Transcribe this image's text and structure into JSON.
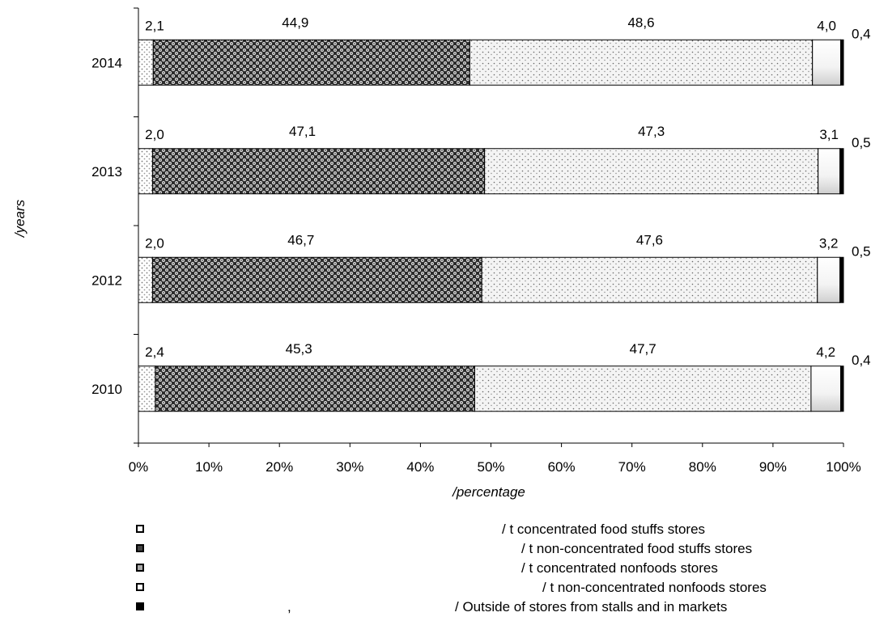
{
  "chart_data": {
    "type": "bar",
    "orientation": "horizontal",
    "stacked": "percent",
    "categories": [
      "2014",
      "2013",
      "2012",
      "2010"
    ],
    "series": [
      {
        "name": "/ t concentrated food stuffs stores",
        "values": [
          2.1,
          2.0,
          2.0,
          2.4
        ],
        "labels": [
          "2,1",
          "2,0",
          "2,0",
          "2,4"
        ],
        "pattern": "small-dots-light"
      },
      {
        "name": "/ t non-concentrated food stuffs stores",
        "values": [
          44.9,
          47.1,
          46.7,
          45.3
        ],
        "labels": [
          "44,9",
          "47,1",
          "46,7",
          "45,3"
        ],
        "pattern": "dark-checker"
      },
      {
        "name": "/ t concentrated nonfoods stores",
        "values": [
          48.6,
          47.3,
          47.6,
          47.7
        ],
        "labels": [
          "48,6",
          "47,3",
          "47,6",
          "47,7"
        ],
        "pattern": "fine-dots"
      },
      {
        "name": "/ t non-concentrated nonfoods stores",
        "values": [
          4.0,
          3.1,
          3.2,
          4.2
        ],
        "labels": [
          "4,0",
          "3,1",
          "3,2",
          "4,2"
        ],
        "pattern": "white-gradient"
      },
      {
        "name": "/ Outside of stores from stalls and in markets",
        "values": [
          0.4,
          0.5,
          0.5,
          0.4
        ],
        "labels": [
          "0,4",
          "0,5",
          "0,5",
          "0,4"
        ],
        "pattern": "solid-black"
      }
    ],
    "xlabel": "/percentage",
    "ylabel": "/years",
    "xlim": [
      0,
      100
    ],
    "xticks": [
      "0%",
      "10%",
      "20%",
      "30%",
      "40%",
      "50%",
      "60%",
      "70%",
      "80%",
      "90%",
      "100%"
    ],
    "grid": false,
    "legend_position": "bottom"
  },
  "legend": {
    "items": [
      {
        "label": "/   t concentrated food stuffs stores",
        "swatch": "hollow"
      },
      {
        "label": "/   t non-concentrated food stuffs stores",
        "swatch": "dark"
      },
      {
        "label": "/   t concentrated nonfoods stores",
        "swatch": "dotted"
      },
      {
        "label": "/   t non-concentrated nonfoods stores",
        "swatch": "hollow"
      },
      {
        "label": "/ Outside of stores from stalls and in markets",
        "swatch": "solid"
      }
    ],
    "stray_comma": ","
  },
  "colors": {
    "axis": "#000000",
    "bar_outline": "#000000"
  }
}
